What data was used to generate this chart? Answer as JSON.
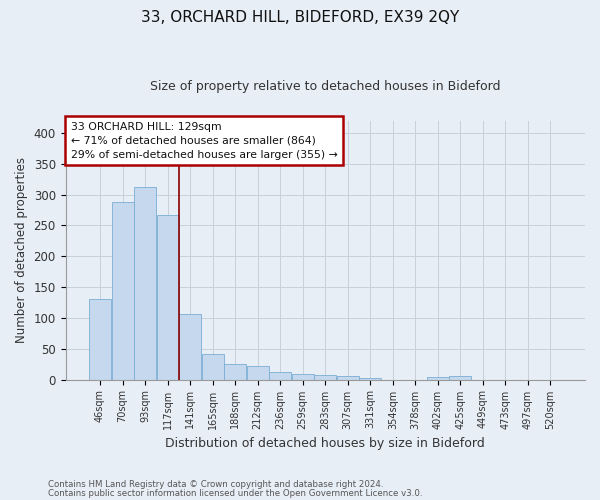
{
  "title": "33, ORCHARD HILL, BIDEFORD, EX39 2QY",
  "subtitle": "Size of property relative to detached houses in Bideford",
  "xlabel": "Distribution of detached houses by size in Bideford",
  "ylabel": "Number of detached properties",
  "footnote1": "Contains HM Land Registry data © Crown copyright and database right 2024.",
  "footnote2": "Contains public sector information licensed under the Open Government Licence v3.0.",
  "categories": [
    "46sqm",
    "70sqm",
    "93sqm",
    "117sqm",
    "141sqm",
    "165sqm",
    "188sqm",
    "212sqm",
    "236sqm",
    "259sqm",
    "283sqm",
    "307sqm",
    "331sqm",
    "354sqm",
    "378sqm",
    "402sqm",
    "425sqm",
    "449sqm",
    "473sqm",
    "497sqm",
    "520sqm"
  ],
  "values": [
    130,
    288,
    312,
    267,
    107,
    42,
    26,
    22,
    12,
    9,
    8,
    5,
    3,
    0,
    0,
    4,
    5,
    0,
    0,
    0,
    0
  ],
  "bar_color": "#c5d8ee",
  "bar_edge_color": "#7aadd4",
  "annotation_line1": "33 ORCHARD HILL: 129sqm",
  "annotation_line2": "← 71% of detached houses are smaller (864)",
  "annotation_line3": "29% of semi-detached houses are larger (355) →",
  "vline_x": 3.5,
  "vline_color": "#8b0000",
  "annotation_box_color": "#aa0000",
  "annotation_box_fill": "#ffffff",
  "ylim": [
    0,
    420
  ],
  "yticks": [
    0,
    50,
    100,
    150,
    200,
    250,
    300,
    350,
    400
  ],
  "grid_color": "#c8d0dc",
  "background_color": "#e8eef6",
  "figsize": [
    6.0,
    5.0
  ],
  "dpi": 100
}
